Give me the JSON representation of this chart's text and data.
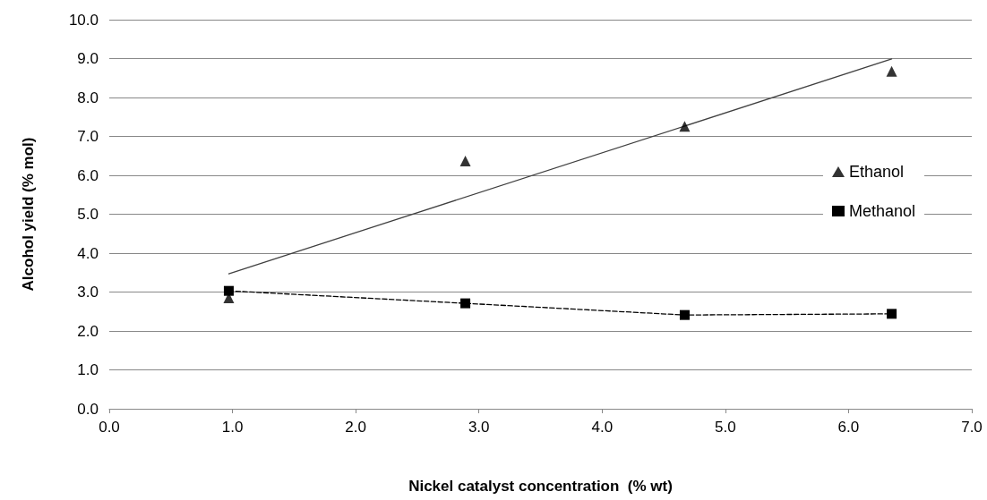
{
  "chart_data": {
    "type": "scatter",
    "xlabel": "Nickel catalyst concentration  (% wt)",
    "ylabel": "Alcohol yield (% mol)",
    "series": [
      {
        "name": "Ethanol",
        "marker": "triangle",
        "color": "#000000",
        "x": [
          0.97,
          2.89,
          4.67,
          6.35
        ],
        "values": [
          2.85,
          6.37,
          7.26,
          8.67
        ]
      },
      {
        "name": "Methanol",
        "type": "line",
        "marker": "square",
        "line_style": "dashed",
        "color": "#000000",
        "x": [
          0.97,
          2.89,
          4.67,
          6.35
        ],
        "values": [
          3.03,
          2.71,
          2.41,
          2.44
        ]
      },
      {
        "type": "line",
        "marker": "none",
        "line_style": "solid",
        "color": "#404040",
        "x": [
          0.97,
          6.35
        ],
        "values": [
          3.47,
          8.99
        ]
      }
    ],
    "xlim": [
      0,
      7
    ],
    "ylim": [
      0,
      10
    ],
    "xticks": [
      {
        "value": 0,
        "label": "0.0"
      },
      {
        "value": 1,
        "label": "1.0"
      },
      {
        "value": 2,
        "label": "2.0"
      },
      {
        "value": 3,
        "label": "3.0"
      },
      {
        "value": 4,
        "label": "4.0"
      },
      {
        "value": 5,
        "label": "5.0"
      },
      {
        "value": 6,
        "label": "6.0"
      },
      {
        "value": 7,
        "label": "7.0"
      }
    ],
    "yticks": [
      {
        "value": 0,
        "label": "0.0"
      },
      {
        "value": 1,
        "label": "1.0"
      },
      {
        "value": 2,
        "label": "2.0"
      },
      {
        "value": 3,
        "label": "3.0"
      },
      {
        "value": 4,
        "label": "4.0"
      },
      {
        "value": 5,
        "label": "5.0"
      },
      {
        "value": 6,
        "label": "6.0"
      },
      {
        "value": 7,
        "label": "7.0"
      },
      {
        "value": 8,
        "label": "8.0"
      },
      {
        "value": 9,
        "label": "9.0"
      },
      {
        "value": 10,
        "label": "10.0"
      }
    ],
    "grid": "y",
    "legend": "right"
  }
}
